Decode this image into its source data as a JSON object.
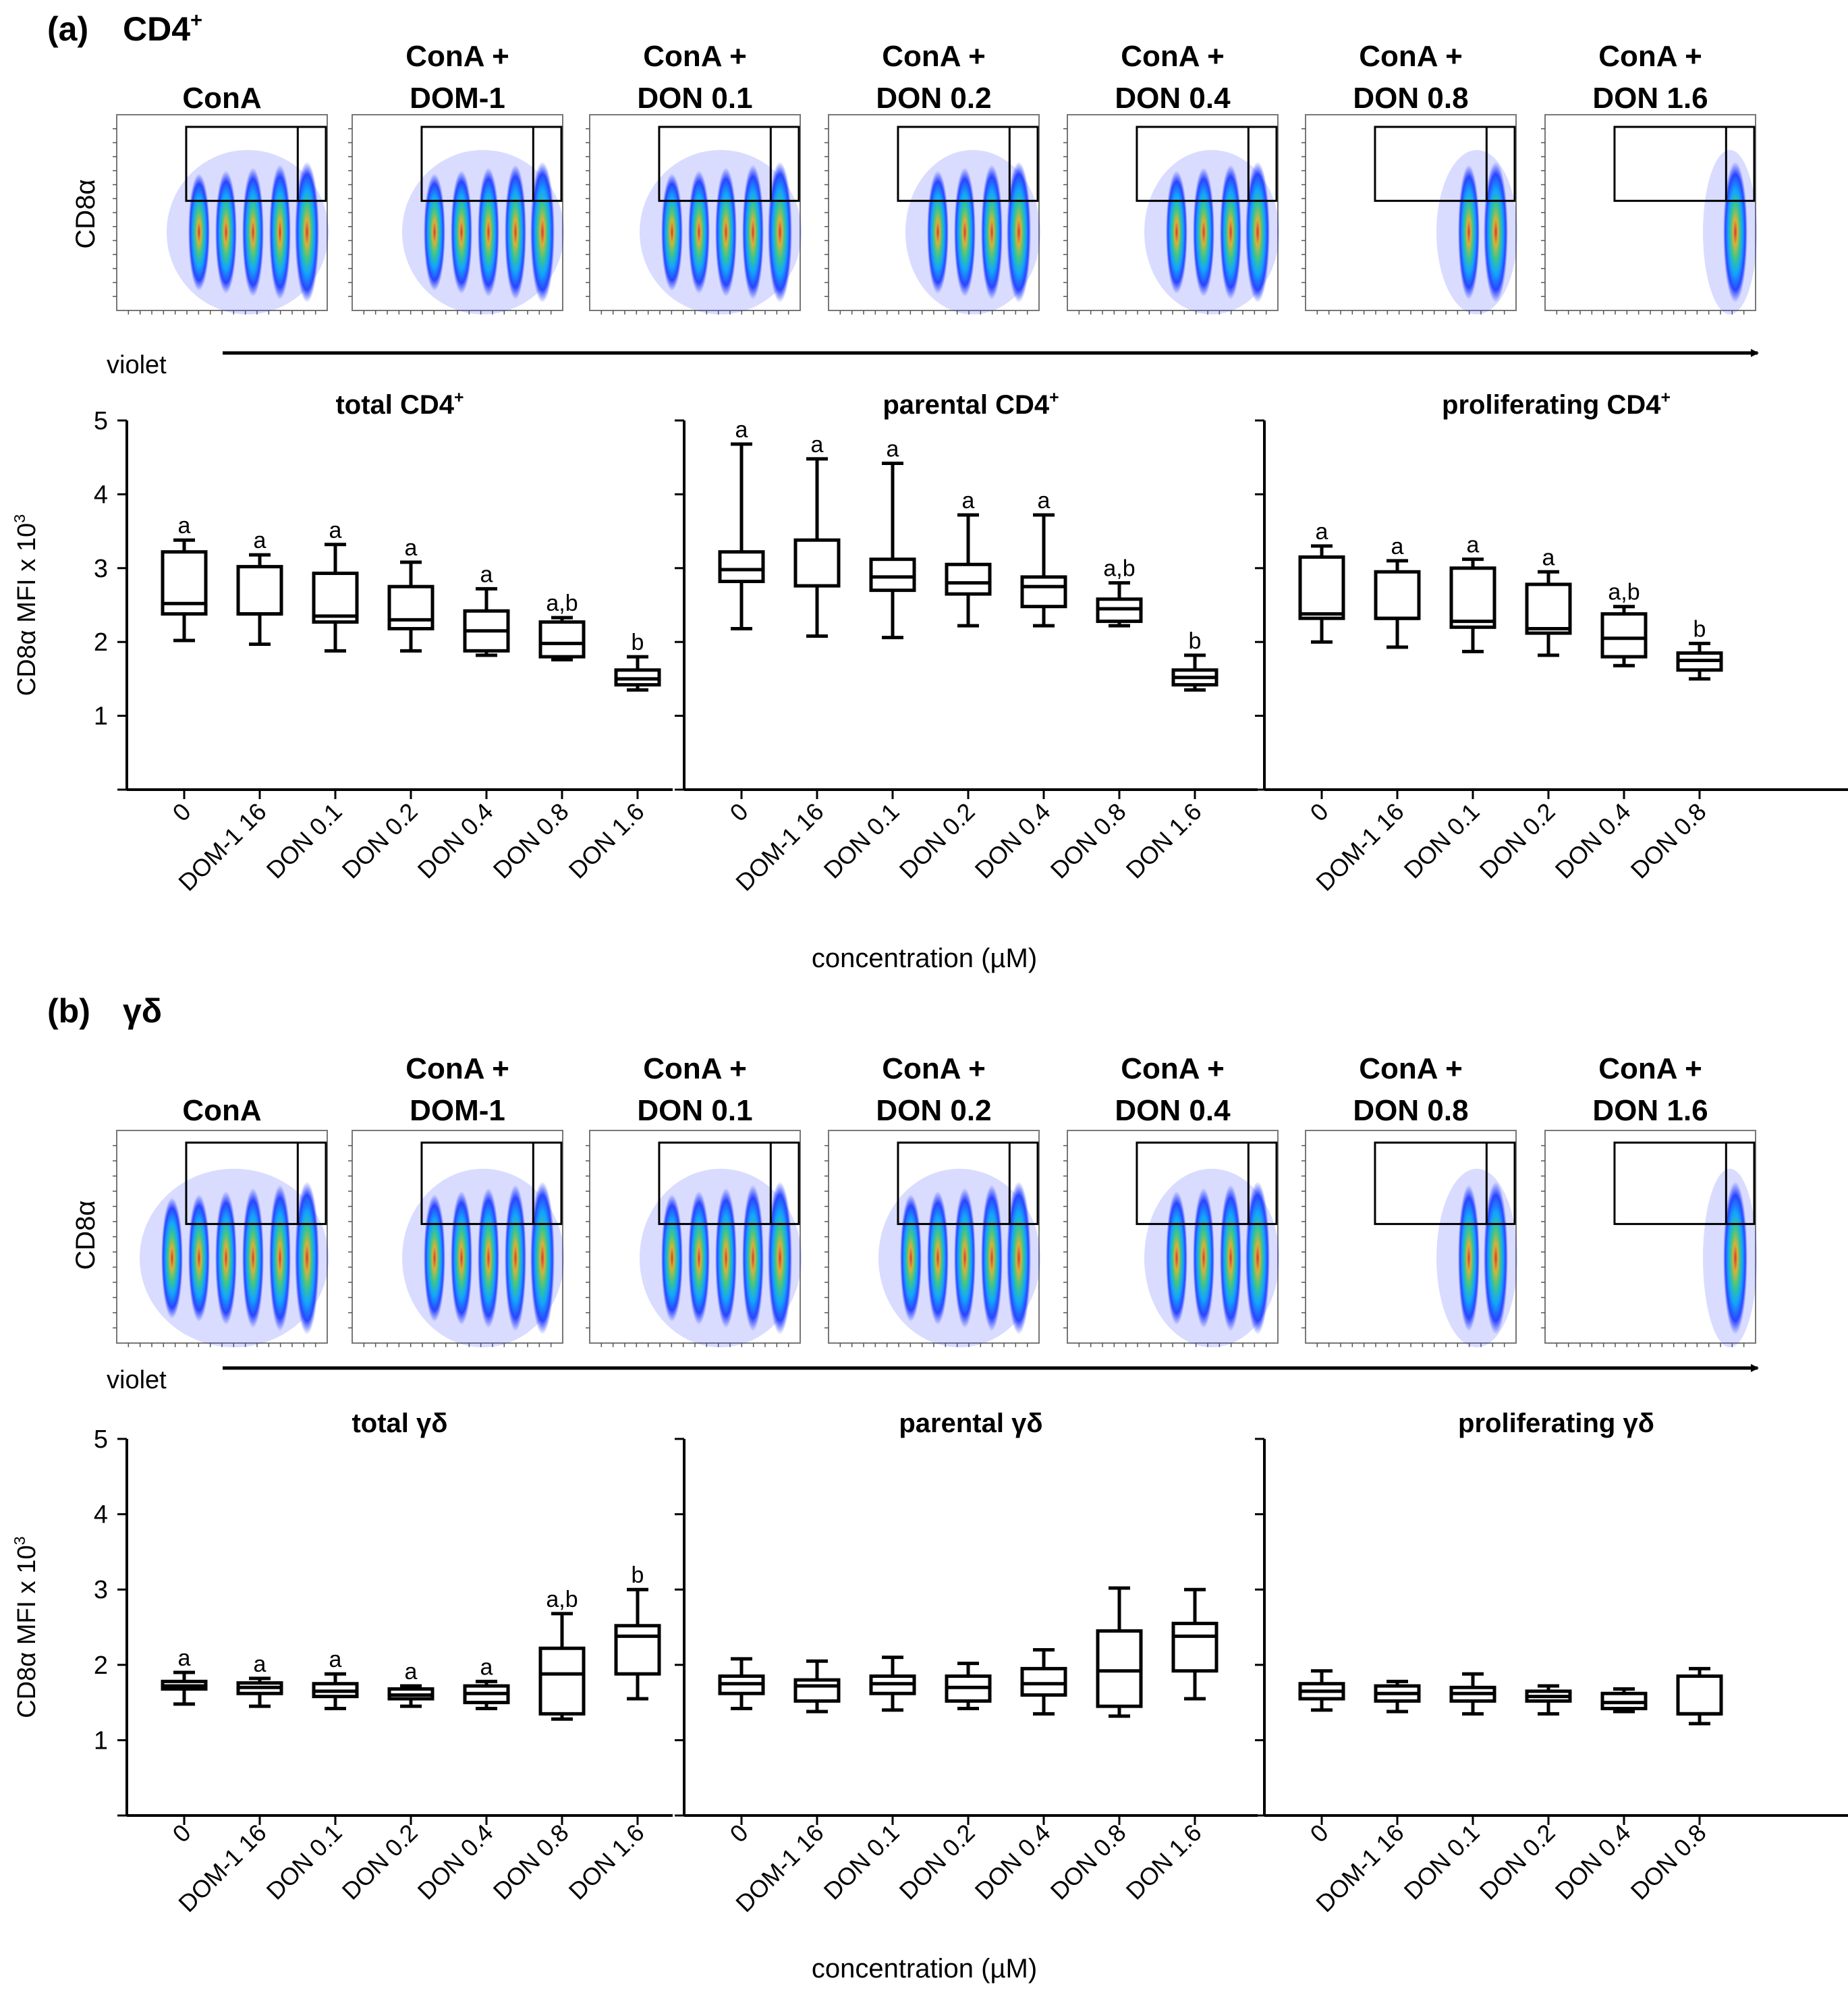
{
  "panels": [
    {
      "letter": "(a)",
      "cell": "CD4",
      "cell_sup": "+",
      "flow": {
        "ylabel": "CD8α",
        "xlabel": "violet",
        "conditions": [
          {
            "line1": "",
            "line2": "ConA",
            "n_peaks": 5
          },
          {
            "line1": "ConA +",
            "line2": "DOM-1",
            "n_peaks": 5
          },
          {
            "line1": "ConA +",
            "line2": "DON 0.1",
            "n_peaks": 5
          },
          {
            "line1": "ConA +",
            "line2": "DON 0.2",
            "n_peaks": 4
          },
          {
            "line1": "ConA +",
            "line2": "DON 0.4",
            "n_peaks": 4
          },
          {
            "line1": "ConA +",
            "line2": "DON 0.8",
            "n_peaks": 2
          },
          {
            "line1": "ConA +",
            "line2": "DON 1.6",
            "n_peaks": 1
          }
        ]
      },
      "chart_data": [
        {
          "type": "box",
          "title": "total CD4",
          "title_sup": "+",
          "ylabel": "CD8α MFI x 10",
          "ylabel_sup": "3",
          "ylim": [
            0,
            5
          ],
          "yticks": [
            1,
            2,
            3,
            4,
            5
          ],
          "categories": [
            "0",
            "DOM-1 16",
            "DON 0.1",
            "DON 0.2",
            "DON 0.4",
            "DON 0.8",
            "DON 1.6"
          ],
          "boxes": [
            {
              "min": 2.02,
              "q1": 2.38,
              "median": 2.52,
              "q3": 3.22,
              "max": 3.38,
              "label": "a"
            },
            {
              "min": 1.97,
              "q1": 2.38,
              "median": 2.38,
              "q3": 3.02,
              "max": 3.18,
              "label": "a"
            },
            {
              "min": 1.88,
              "q1": 2.27,
              "median": 2.35,
              "q3": 2.93,
              "max": 3.32,
              "label": "a"
            },
            {
              "min": 1.88,
              "q1": 2.18,
              "median": 2.3,
              "q3": 2.75,
              "max": 3.08,
              "label": "a"
            },
            {
              "min": 1.82,
              "q1": 1.88,
              "median": 2.15,
              "q3": 2.42,
              "max": 2.72,
              "label": "a"
            },
            {
              "min": 1.76,
              "q1": 1.8,
              "median": 1.98,
              "q3": 2.27,
              "max": 2.33,
              "label": "a,b"
            },
            {
              "min": 1.35,
              "q1": 1.42,
              "median": 1.5,
              "q3": 1.62,
              "max": 1.8,
              "label": "b"
            }
          ]
        },
        {
          "type": "box",
          "title": "parental CD4",
          "title_sup": "+",
          "ylim": [
            0,
            5
          ],
          "categories": [
            "0",
            "DOM-1 16",
            "DON 0.1",
            "DON 0.2",
            "DON 0.4",
            "DON 0.8",
            "DON 1.6"
          ],
          "boxes": [
            {
              "min": 2.18,
              "q1": 2.82,
              "median": 2.98,
              "q3": 3.22,
              "max": 4.68,
              "label": "a"
            },
            {
              "min": 2.08,
              "q1": 2.76,
              "median": 2.76,
              "q3": 3.38,
              "max": 4.48,
              "label": "a"
            },
            {
              "min": 2.06,
              "q1": 2.7,
              "median": 2.88,
              "q3": 3.12,
              "max": 4.42,
              "label": "a"
            },
            {
              "min": 2.22,
              "q1": 2.65,
              "median": 2.8,
              "q3": 3.05,
              "max": 3.72,
              "label": "a"
            },
            {
              "min": 2.22,
              "q1": 2.48,
              "median": 2.75,
              "q3": 2.88,
              "max": 3.72,
              "label": "a"
            },
            {
              "min": 2.22,
              "q1": 2.28,
              "median": 2.45,
              "q3": 2.58,
              "max": 2.8,
              "label": "a,b"
            },
            {
              "min": 1.35,
              "q1": 1.42,
              "median": 1.52,
              "q3": 1.62,
              "max": 1.82,
              "label": "b"
            }
          ]
        },
        {
          "type": "box",
          "title": "proliferating CD4",
          "title_sup": "+",
          "ylim": [
            0,
            5
          ],
          "categories": [
            "0",
            "DOM-1 16",
            "DON 0.1",
            "DON 0.2",
            "DON 0.4",
            "DON 0.8"
          ],
          "boxes": [
            {
              "min": 2.0,
              "q1": 2.32,
              "median": 2.38,
              "q3": 3.15,
              "max": 3.3,
              "label": "a"
            },
            {
              "min": 1.93,
              "q1": 2.32,
              "median": 2.32,
              "q3": 2.95,
              "max": 3.1,
              "label": "a"
            },
            {
              "min": 1.87,
              "q1": 2.2,
              "median": 2.28,
              "q3": 3.0,
              "max": 3.12,
              "label": "a"
            },
            {
              "min": 1.82,
              "q1": 2.12,
              "median": 2.18,
              "q3": 2.78,
              "max": 2.95,
              "label": "a"
            },
            {
              "min": 1.68,
              "q1": 1.8,
              "median": 2.05,
              "q3": 2.38,
              "max": 2.48,
              "label": "a,b"
            },
            {
              "min": 1.5,
              "q1": 1.62,
              "median": 1.75,
              "q3": 1.85,
              "max": 1.98,
              "label": "b"
            }
          ]
        }
      ],
      "xlabel": "concentration (µM)"
    },
    {
      "letter": "(b)",
      "cell": "γδ",
      "cell_sup": "",
      "flow": {
        "ylabel": "CD8α",
        "xlabel": "violet",
        "conditions": [
          {
            "line1": "",
            "line2": "ConA",
            "n_peaks": 6
          },
          {
            "line1": "ConA +",
            "line2": "DOM-1",
            "n_peaks": 5
          },
          {
            "line1": "ConA +",
            "line2": "DON 0.1",
            "n_peaks": 5
          },
          {
            "line1": "ConA +",
            "line2": "DON 0.2",
            "n_peaks": 5
          },
          {
            "line1": "ConA +",
            "line2": "DON 0.4",
            "n_peaks": 4
          },
          {
            "line1": "ConA +",
            "line2": "DON 0.8",
            "n_peaks": 2
          },
          {
            "line1": "ConA +",
            "line2": "DON 1.6",
            "n_peaks": 1
          }
        ]
      },
      "chart_data": [
        {
          "type": "box",
          "title": "total γδ",
          "title_sup": "",
          "ylabel": "CD8α MFI x 10",
          "ylabel_sup": "3",
          "ylim": [
            0,
            5
          ],
          "yticks": [
            1,
            2,
            3,
            4,
            5
          ],
          "categories": [
            "0",
            "DOM-1 16",
            "DON 0.1",
            "DON 0.2",
            "DON 0.4",
            "DON 0.8",
            "DON 1.6"
          ],
          "boxes": [
            {
              "min": 1.48,
              "q1": 1.68,
              "median": 1.72,
              "q3": 1.78,
              "max": 1.9,
              "label": "a"
            },
            {
              "min": 1.45,
              "q1": 1.62,
              "median": 1.7,
              "q3": 1.76,
              "max": 1.82,
              "label": "a"
            },
            {
              "min": 1.42,
              "q1": 1.58,
              "median": 1.65,
              "q3": 1.75,
              "max": 1.88,
              "label": "a"
            },
            {
              "min": 1.45,
              "q1": 1.55,
              "median": 1.6,
              "q3": 1.68,
              "max": 1.72,
              "label": "a"
            },
            {
              "min": 1.42,
              "q1": 1.5,
              "median": 1.62,
              "q3": 1.72,
              "max": 1.78,
              "label": "a"
            },
            {
              "min": 1.28,
              "q1": 1.35,
              "median": 1.88,
              "q3": 2.22,
              "max": 2.68,
              "label": "a,b"
            },
            {
              "min": 1.55,
              "q1": 1.88,
              "median": 2.38,
              "q3": 2.52,
              "max": 3.0,
              "label": "b"
            }
          ]
        },
        {
          "type": "box",
          "title": "parental γδ",
          "title_sup": "",
          "ylim": [
            0,
            5
          ],
          "categories": [
            "0",
            "DOM-1 16",
            "DON 0.1",
            "DON 0.2",
            "DON 0.4",
            "DON 0.8",
            "DON 1.6"
          ],
          "boxes": [
            {
              "min": 1.42,
              "q1": 1.62,
              "median": 1.75,
              "q3": 1.85,
              "max": 2.08,
              "label": ""
            },
            {
              "min": 1.38,
              "q1": 1.52,
              "median": 1.72,
              "q3": 1.8,
              "max": 2.05,
              "label": ""
            },
            {
              "min": 1.4,
              "q1": 1.62,
              "median": 1.75,
              "q3": 1.85,
              "max": 2.1,
              "label": ""
            },
            {
              "min": 1.42,
              "q1": 1.52,
              "median": 1.7,
              "q3": 1.85,
              "max": 2.02,
              "label": ""
            },
            {
              "min": 1.35,
              "q1": 1.6,
              "median": 1.75,
              "q3": 1.95,
              "max": 2.2,
              "label": ""
            },
            {
              "min": 1.32,
              "q1": 1.45,
              "median": 1.92,
              "q3": 2.45,
              "max": 3.02,
              "label": ""
            },
            {
              "min": 1.55,
              "q1": 1.92,
              "median": 2.38,
              "q3": 2.55,
              "max": 3.0,
              "label": ""
            }
          ]
        },
        {
          "type": "box",
          "title": "proliferating γδ",
          "title_sup": "",
          "ylim": [
            0,
            5
          ],
          "categories": [
            "0",
            "DOM-1 16",
            "DON 0.1",
            "DON 0.2",
            "DON 0.4",
            "DON 0.8"
          ],
          "boxes": [
            {
              "min": 1.4,
              "q1": 1.55,
              "median": 1.65,
              "q3": 1.75,
              "max": 1.92,
              "label": ""
            },
            {
              "min": 1.38,
              "q1": 1.52,
              "median": 1.62,
              "q3": 1.72,
              "max": 1.78,
              "label": ""
            },
            {
              "min": 1.35,
              "q1": 1.52,
              "median": 1.62,
              "q3": 1.7,
              "max": 1.88,
              "label": ""
            },
            {
              "min": 1.35,
              "q1": 1.52,
              "median": 1.58,
              "q3": 1.65,
              "max": 1.72,
              "label": ""
            },
            {
              "min": 1.38,
              "q1": 1.42,
              "median": 1.5,
              "q3": 1.62,
              "max": 1.68,
              "label": ""
            },
            {
              "min": 1.22,
              "q1": 1.35,
              "median": 1.35,
              "q3": 1.85,
              "max": 1.95,
              "label": ""
            }
          ]
        }
      ],
      "xlabel": "concentration (µM)"
    }
  ]
}
